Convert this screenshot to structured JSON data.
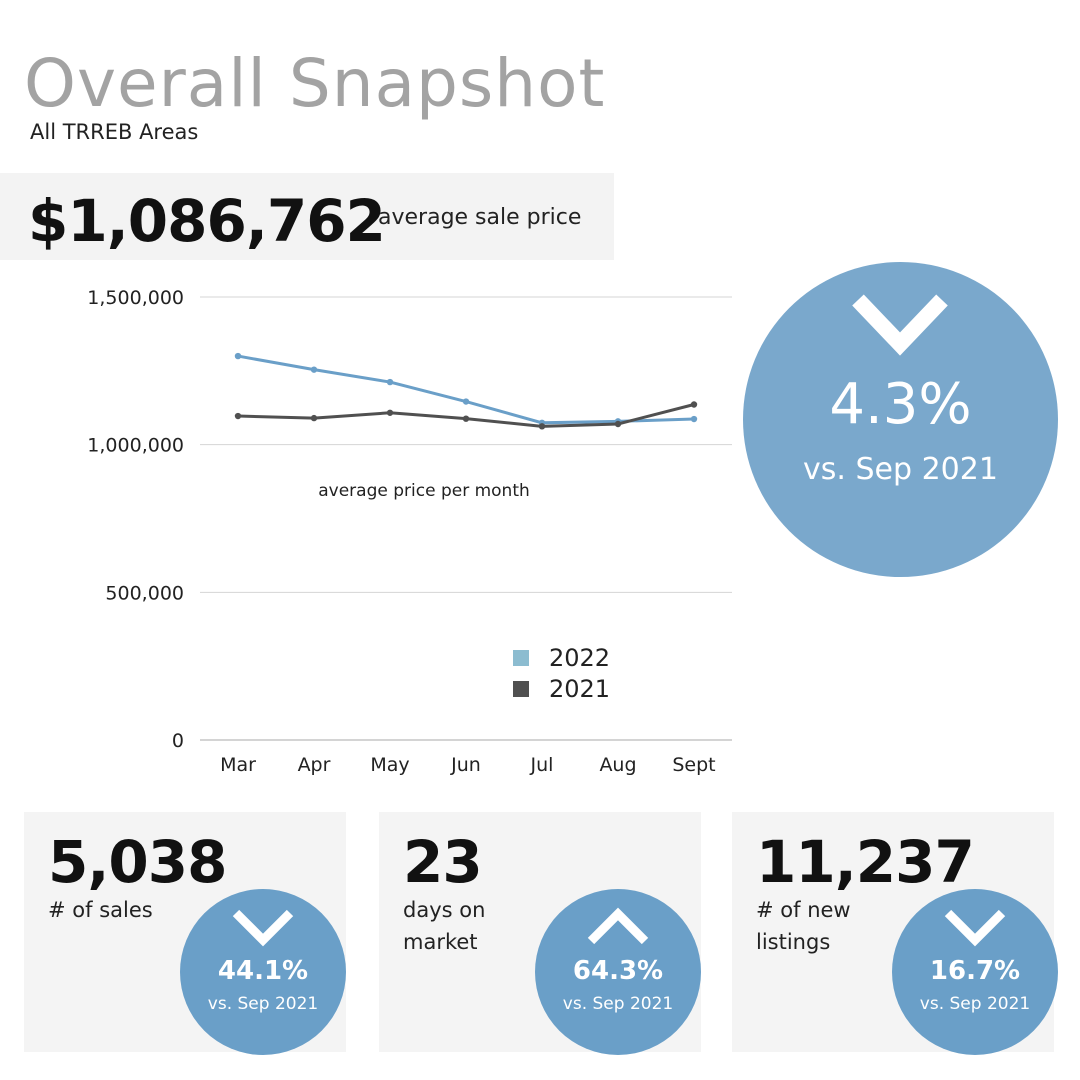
{
  "header": {
    "title": "Overall Snapshot",
    "subtitle": "All TRREB Areas"
  },
  "headline": {
    "value": "$1,086,762",
    "label": "average sale price"
  },
  "main_change": {
    "direction": "down",
    "percent": "4.3%",
    "comparison": "vs. Sep 2021"
  },
  "chart_data": {
    "type": "line",
    "title": "",
    "annotation": "average price per month",
    "categories": [
      "Mar",
      "Apr",
      "May",
      "Jun",
      "Jul",
      "Aug",
      "Sept"
    ],
    "series": [
      {
        "name": "2022",
        "color": "#6a9fc8",
        "values": [
          1300000,
          1254000,
          1212000,
          1146000,
          1074000,
          1079000,
          1086762
        ]
      },
      {
        "name": "2021",
        "color": "#505050",
        "values": [
          1097000,
          1090000,
          1108000,
          1088000,
          1062000,
          1070000,
          1136000
        ]
      }
    ],
    "ylim": [
      0,
      1500000
    ],
    "yticks": [
      0,
      500000,
      1000000,
      1500000
    ],
    "ytick_labels": [
      "0",
      "500,000",
      "1,000,000",
      "1,500,000"
    ],
    "grid": true,
    "legend_position": "bottom-center",
    "legend_colors": {
      "2022": "#8cbcd0",
      "2021": "#505050"
    }
  },
  "stats": [
    {
      "value": "5,038",
      "label": "# of sales",
      "direction": "down",
      "percent": "44.1%",
      "comparison": "vs. Sep 2021"
    },
    {
      "value": "23",
      "label": "days on market",
      "direction": "up",
      "percent": "64.3%",
      "comparison": "vs. Sep 2021"
    },
    {
      "value": "11,237",
      "label": "# of new listings",
      "direction": "down",
      "percent": "16.7%",
      "comparison": "vs. Sep 2021"
    }
  ]
}
